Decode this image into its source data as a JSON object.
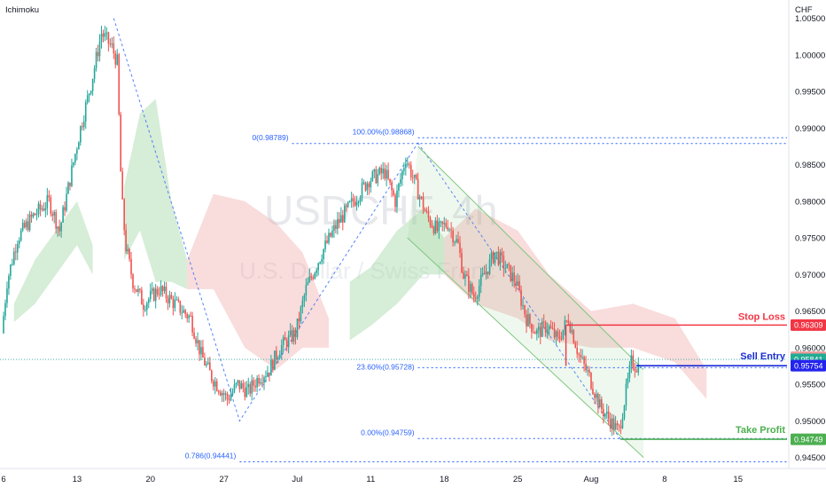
{
  "header": {
    "indicator_name": "Ichimoku",
    "currency": "CHF"
  },
  "watermark": {
    "symbol_text": "USDCHF, 4h",
    "description": "U.S. Dollar / Swiss Franc"
  },
  "colors": {
    "bull": "#26a69a",
    "bear": "#ef5350",
    "fib_blue": "#2962ff",
    "stop": "#f23645",
    "entry": "#1c2bd6",
    "take": "#4caf50",
    "channel": "#7fc77f",
    "cloud_green": "#a5d6a7",
    "cloud_red": "#ef9a9a"
  },
  "chart_data": {
    "type": "candlestick",
    "title": "USDCHF, 4h",
    "subtitle": "U.S. Dollar / Swiss Franc",
    "indicator": "Ichimoku",
    "ylim": [
      0.9435,
      1.0075
    ],
    "y_ticks": [
      "1.00500",
      "1.00000",
      "0.99500",
      "0.99000",
      "0.98500",
      "0.98000",
      "0.97500",
      "0.97000",
      "0.96500",
      "0.96000",
      "0.95500",
      "0.95000",
      "0.94500"
    ],
    "x_ticks": [
      "6",
      "13",
      "20",
      "27",
      "Jul",
      "11",
      "18",
      "25",
      "Aug",
      "8",
      "15"
    ],
    "x_tick_days": [
      6,
      13,
      20,
      27,
      34,
      41,
      48,
      55,
      62,
      69,
      76
    ],
    "day_range": [
      6,
      80.5
    ],
    "price_anchors": [
      {
        "day": 6.0,
        "price": 0.962
      },
      {
        "day": 6.5,
        "price": 0.969
      },
      {
        "day": 7.5,
        "price": 0.975
      },
      {
        "day": 9.0,
        "price": 0.978
      },
      {
        "day": 10.5,
        "price": 0.98
      },
      {
        "day": 11.5,
        "price": 0.976
      },
      {
        "day": 12.5,
        "price": 0.983
      },
      {
        "day": 13.5,
        "price": 0.99
      },
      {
        "day": 14.5,
        "price": 0.996
      },
      {
        "day": 15.5,
        "price": 1.003
      },
      {
        "day": 16.5,
        "price": 1.001
      },
      {
        "day": 17.0,
        "price": 0.999
      },
      {
        "day": 17.4,
        "price": 0.981
      },
      {
        "day": 17.8,
        "price": 0.974
      },
      {
        "day": 18.5,
        "price": 0.969
      },
      {
        "day": 19.5,
        "price": 0.966
      },
      {
        "day": 21.0,
        "price": 0.968
      },
      {
        "day": 22.5,
        "price": 0.966
      },
      {
        "day": 24.0,
        "price": 0.964
      },
      {
        "day": 25.0,
        "price": 0.959
      },
      {
        "day": 26.0,
        "price": 0.956
      },
      {
        "day": 27.0,
        "price": 0.954
      },
      {
        "day": 27.5,
        "price": 0.953
      },
      {
        "day": 28.5,
        "price": 0.955
      },
      {
        "day": 29.5,
        "price": 0.954
      },
      {
        "day": 30.5,
        "price": 0.956
      },
      {
        "day": 31.5,
        "price": 0.957
      },
      {
        "day": 32.5,
        "price": 0.96
      },
      {
        "day": 34.0,
        "price": 0.962
      },
      {
        "day": 35.0,
        "price": 0.968
      },
      {
        "day": 36.5,
        "price": 0.973
      },
      {
        "day": 38.0,
        "price": 0.977
      },
      {
        "day": 39.5,
        "price": 0.98
      },
      {
        "day": 41.0,
        "price": 0.983
      },
      {
        "day": 42.5,
        "price": 0.984
      },
      {
        "day": 43.5,
        "price": 0.98
      },
      {
        "day": 44.5,
        "price": 0.986
      },
      {
        "day": 45.5,
        "price": 0.982
      },
      {
        "day": 46.5,
        "price": 0.978
      },
      {
        "day": 47.5,
        "price": 0.976
      },
      {
        "day": 48.5,
        "price": 0.977
      },
      {
        "day": 49.5,
        "price": 0.974
      },
      {
        "day": 50.0,
        "price": 0.97
      },
      {
        "day": 51.0,
        "price": 0.967
      },
      {
        "day": 52.0,
        "price": 0.97
      },
      {
        "day": 53.0,
        "price": 0.973
      },
      {
        "day": 54.0,
        "price": 0.971
      },
      {
        "day": 55.0,
        "price": 0.969
      },
      {
        "day": 56.0,
        "price": 0.964
      },
      {
        "day": 57.0,
        "price": 0.962
      },
      {
        "day": 58.0,
        "price": 0.963
      },
      {
        "day": 59.0,
        "price": 0.961
      },
      {
        "day": 60.0,
        "price": 0.964
      },
      {
        "day": 61.0,
        "price": 0.959
      },
      {
        "day": 62.0,
        "price": 0.956
      },
      {
        "day": 63.0,
        "price": 0.952
      },
      {
        "day": 64.0,
        "price": 0.95
      },
      {
        "day": 64.8,
        "price": 0.9485
      },
      {
        "day": 65.5,
        "price": 0.954
      },
      {
        "day": 66.0,
        "price": 0.958
      },
      {
        "day": 66.5,
        "price": 0.9575
      }
    ],
    "cloud_segments": [
      {
        "type": "green",
        "points": [
          [
            7.0,
            0.966,
            0.9635
          ],
          [
            9.0,
            0.972,
            0.966
          ],
          [
            11.0,
            0.976,
            0.97
          ],
          [
            13.0,
            0.98,
            0.974
          ],
          [
            14.5,
            0.974,
            0.97
          ]
        ]
      },
      {
        "type": "green",
        "points": [
          [
            17.5,
            0.982,
            0.972
          ],
          [
            19.0,
            0.992,
            0.976
          ],
          [
            20.5,
            0.994,
            0.969
          ],
          [
            22.0,
            0.98,
            0.969
          ],
          [
            23.5,
            0.972,
            0.968
          ]
        ]
      },
      {
        "type": "red",
        "points": [
          [
            23.5,
            0.972,
            0.968
          ],
          [
            26.0,
            0.981,
            0.968
          ],
          [
            29.0,
            0.98,
            0.96
          ],
          [
            32.0,
            0.977,
            0.957
          ],
          [
            34.5,
            0.973,
            0.96
          ],
          [
            37.0,
            0.964,
            0.96
          ]
        ]
      },
      {
        "type": "green",
        "points": [
          [
            39.0,
            0.969,
            0.961
          ],
          [
            41.0,
            0.971,
            0.963
          ],
          [
            43.5,
            0.976,
            0.966
          ],
          [
            46.0,
            0.979,
            0.97
          ],
          [
            48.0,
            0.975,
            0.97
          ]
        ]
      },
      {
        "type": "red",
        "points": [
          [
            48.0,
            0.975,
            0.97
          ],
          [
            51.0,
            0.979,
            0.966
          ],
          [
            55.0,
            0.976,
            0.964
          ],
          [
            58.0,
            0.97,
            0.961
          ],
          [
            62.0,
            0.965,
            0.96
          ],
          [
            66.0,
            0.966,
            0.96
          ],
          [
            70.0,
            0.964,
            0.958
          ],
          [
            73.0,
            0.957,
            0.953
          ]
        ]
      }
    ],
    "fibonacci": {
      "upper": [
        {
          "label": "0(0.98789)",
          "price": 0.98789
        },
        {
          "label": "100.00%(0.98868)",
          "price": 0.98868
        },
        {
          "label": "23.60%(0.95728)",
          "price": 0.95728
        }
      ],
      "lower": [
        {
          "label": "0.00%(0.94759)",
          "price": 0.94759
        },
        {
          "label": "0.786(0.94441)",
          "price": 0.94441
        }
      ]
    },
    "levels": {
      "stop_loss": {
        "label": "Stop Loss",
        "price": "0.96309",
        "value": 0.96309
      },
      "sell_entry": {
        "label": "Sell Entry",
        "price": "0.95754",
        "value": 0.95754
      },
      "take_profit": {
        "label": "Take Profit",
        "price": "0.94749",
        "value": 0.94749
      }
    },
    "price_tags": [
      {
        "text": "0.95870",
        "value": 0.9587,
        "kind": "pink"
      },
      {
        "text": "0.95841",
        "value": 0.95841,
        "kind": "green"
      }
    ],
    "current_price_line": 0.9584,
    "channel": {
      "upper": [
        [
          45.5,
          0.9875
        ],
        [
          67.0,
          0.957
        ]
      ],
      "lower": [
        [
          44.5,
          0.975
        ],
        [
          67.0,
          0.945
        ]
      ]
    },
    "swing_lines": [
      [
        [
          16.5,
          1.005
        ],
        [
          28.5,
          0.95
        ],
        [
          45.5,
          0.988
        ]
      ],
      [
        [
          45.5,
          0.988
        ],
        [
          64.8,
          0.9475
        ]
      ]
    ]
  }
}
